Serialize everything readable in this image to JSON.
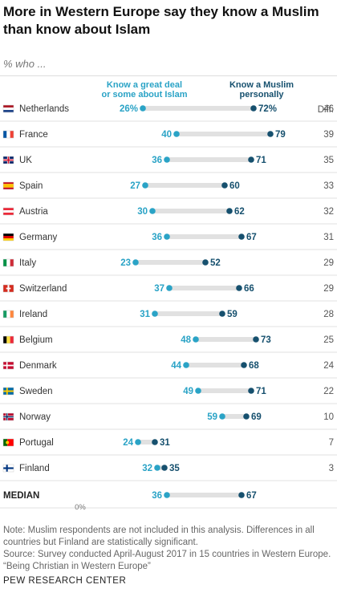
{
  "title": "More in Western Europe say they know a Muslim than know about Islam",
  "subtitle": "% who ...",
  "chart_data": {
    "type": "dot-plot",
    "xlim": [
      0,
      100
    ],
    "axis_zero_label": "0%",
    "diff_header": "Diff.",
    "series": [
      {
        "name": "Know a great deal or some about Islam",
        "label_lines": [
          "Know a great deal",
          "or some about Islam"
        ],
        "color": "#2aa3c6"
      },
      {
        "name": "Know a Muslim personally",
        "label_lines": [
          "Know a Muslim",
          "personally"
        ],
        "color": "#16506e"
      }
    ],
    "rows": [
      {
        "country": "Netherlands",
        "islam": 26,
        "muslim": 72,
        "islam_label": "26%",
        "muslim_label": "72%",
        "diff": 46,
        "flag": "netherlands"
      },
      {
        "country": "France",
        "islam": 40,
        "muslim": 79,
        "islam_label": "40",
        "muslim_label": "79",
        "diff": 39,
        "flag": "france"
      },
      {
        "country": "UK",
        "islam": 36,
        "muslim": 71,
        "islam_label": "36",
        "muslim_label": "71",
        "diff": 35,
        "flag": "uk"
      },
      {
        "country": "Spain",
        "islam": 27,
        "muslim": 60,
        "islam_label": "27",
        "muslim_label": "60",
        "diff": 33,
        "flag": "spain"
      },
      {
        "country": "Austria",
        "islam": 30,
        "muslim": 62,
        "islam_label": "30",
        "muslim_label": "62",
        "diff": 32,
        "flag": "austria"
      },
      {
        "country": "Germany",
        "islam": 36,
        "muslim": 67,
        "islam_label": "36",
        "muslim_label": "67",
        "diff": 31,
        "flag": "germany"
      },
      {
        "country": "Italy",
        "islam": 23,
        "muslim": 52,
        "islam_label": "23",
        "muslim_label": "52",
        "diff": 29,
        "flag": "italy"
      },
      {
        "country": "Switzerland",
        "islam": 37,
        "muslim": 66,
        "islam_label": "37",
        "muslim_label": "66",
        "diff": 29,
        "flag": "switzerland"
      },
      {
        "country": "Ireland",
        "islam": 31,
        "muslim": 59,
        "islam_label": "31",
        "muslim_label": "59",
        "diff": 28,
        "flag": "ireland"
      },
      {
        "country": "Belgium",
        "islam": 48,
        "muslim": 73,
        "islam_label": "48",
        "muslim_label": "73",
        "diff": 25,
        "flag": "belgium"
      },
      {
        "country": "Denmark",
        "islam": 44,
        "muslim": 68,
        "islam_label": "44",
        "muslim_label": "68",
        "diff": 24,
        "flag": "denmark"
      },
      {
        "country": "Sweden",
        "islam": 49,
        "muslim": 71,
        "islam_label": "49",
        "muslim_label": "71",
        "diff": 22,
        "flag": "sweden"
      },
      {
        "country": "Norway",
        "islam": 59,
        "muslim": 69,
        "islam_label": "59",
        "muslim_label": "69",
        "diff": 10,
        "flag": "norway"
      },
      {
        "country": "Portugal",
        "islam": 24,
        "muslim": 31,
        "islam_label": "24",
        "muslim_label": "31",
        "diff": 7,
        "flag": "portugal"
      },
      {
        "country": "Finland",
        "islam": 32,
        "muslim": 35,
        "islam_label": "32",
        "muslim_label": "35",
        "diff": 3,
        "flag": "finland"
      }
    ],
    "median": {
      "label": "MEDIAN",
      "islam": 36,
      "muslim": 67,
      "islam_label": "36",
      "muslim_label": "67"
    }
  },
  "note": "Note: Muslim respondents are not included in this analysis. Differences in all countries but Finland are statistically significant.",
  "source": "Source: Survey conducted April-August 2017 in 15 countries in Western Europe.",
  "report": "“Being Christian in Western Europe”",
  "footer": "PEW RESEARCH CENTER"
}
